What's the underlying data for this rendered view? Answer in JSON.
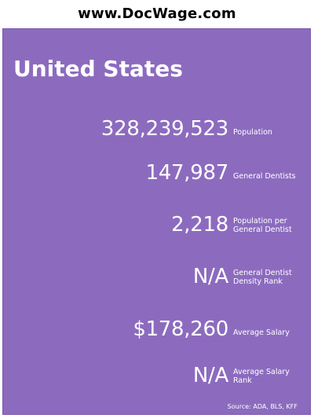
{
  "site": {
    "title": "www.DocWage.com"
  },
  "card": {
    "region": "United States",
    "stats": [
      {
        "value": "328,239,523",
        "label": "Population"
      },
      {
        "value": "147,987",
        "label": "General Dentists"
      },
      {
        "value": "2,218",
        "label": "Population per General Dentist"
      },
      {
        "value": "N/A",
        "label": "General Dentist Density Rank"
      },
      {
        "value": "$178,260",
        "label": "Average Salary"
      },
      {
        "value": "N/A",
        "label": "Average Salary Rank"
      }
    ],
    "source": "Source:  ADA, BLS, KFF"
  },
  "colors": {
    "card_background": "#8c6bbf",
    "text": "#ffffff"
  }
}
